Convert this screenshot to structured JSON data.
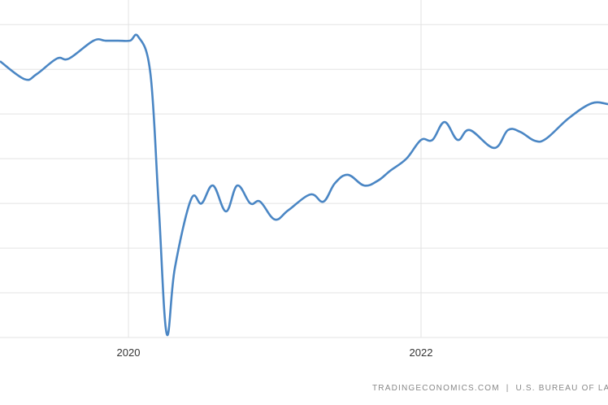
{
  "chart_data": {
    "type": "line",
    "x": [
      2019.122,
      2019.289,
      2019.372,
      2019.511,
      2019.594,
      2019.761,
      2019.844,
      2019.928,
      2020.011,
      2020.067,
      2020.15,
      2020.206,
      2020.261,
      2020.317,
      2020.428,
      2020.5,
      2020.578,
      2020.667,
      2020.744,
      2020.833,
      2020.9,
      2021.0,
      2021.094,
      2021.244,
      2021.333,
      2021.411,
      2021.5,
      2021.611,
      2021.706,
      2021.789,
      2021.9,
      2022.0,
      2022.078,
      2022.161,
      2022.25,
      2022.333,
      2022.5,
      2022.594,
      2022.678,
      2022.778,
      2022.856,
      2023.011,
      2023.167,
      2023.278
    ],
    "values": [
      6.18,
      5.78,
      5.89,
      6.24,
      6.24,
      6.64,
      6.64,
      6.64,
      6.64,
      6.73,
      5.91,
      3.0,
      0.09,
      1.55,
      3.09,
      3.0,
      3.4,
      2.82,
      3.4,
      3.0,
      3.04,
      2.64,
      2.85,
      3.2,
      3.04,
      3.45,
      3.64,
      3.4,
      3.51,
      3.73,
      4.0,
      4.42,
      4.42,
      4.82,
      4.42,
      4.64,
      4.24,
      4.64,
      4.6,
      4.4,
      4.45,
      4.91,
      5.24,
      5.22
    ],
    "color": "#4a86c4",
    "xlim": [
      2019.122,
      2023.278
    ],
    "xticks": [
      2020,
      2022
    ],
    "ylim": [
      0,
      7.55
    ],
    "ygrid": [
      0,
      1,
      2,
      3,
      4,
      5,
      6,
      7
    ],
    "grid": true,
    "source": "TRADINGECONOMICS.COM  |  U.S. BUREAU OF LA"
  }
}
